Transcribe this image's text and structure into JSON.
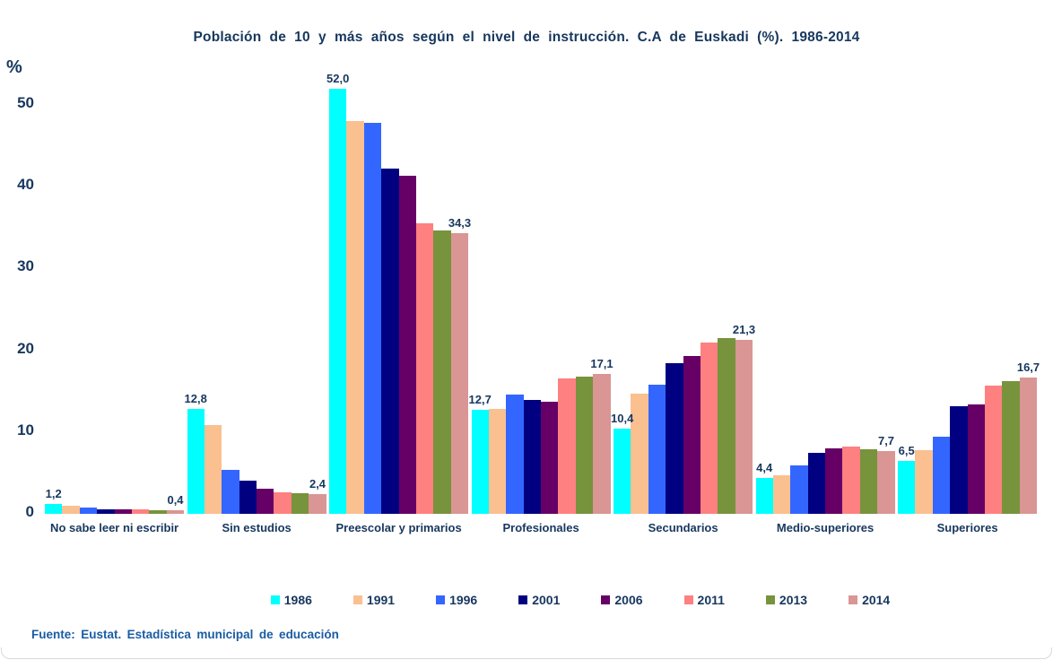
{
  "y_axis": {
    "unit": "%",
    "ticks": [
      0,
      10,
      20,
      30,
      40,
      50
    ]
  },
  "number_format": {
    "decimal_separator": ","
  },
  "chart_data": {
    "type": "bar",
    "title": "Población de 10 y más años según el nivel de instrucción.  C.A de Euskadi (%). 1986-2014",
    "categories": [
      "No sabe leer ni escribir",
      "Sin estudios",
      "Preescolar y primarios",
      "Profesionales",
      "Secundarios",
      "Medio-superiores",
      "Superiores"
    ],
    "series": [
      {
        "name": "1986",
        "color": "#00FFFF",
        "values": [
          1.2,
          12.8,
          52.0,
          12.7,
          10.4,
          4.4,
          6.5
        ]
      },
      {
        "name": "1991",
        "color": "#FAC090",
        "values": [
          1.0,
          10.9,
          48.0,
          12.8,
          14.7,
          4.7,
          7.8
        ]
      },
      {
        "name": "1996",
        "color": "#3366FF",
        "values": [
          0.8,
          5.4,
          47.8,
          14.6,
          15.8,
          5.9,
          9.4
        ]
      },
      {
        "name": "2001",
        "color": "#000080",
        "values": [
          0.6,
          4.1,
          42.2,
          13.9,
          18.4,
          7.4,
          13.2
        ]
      },
      {
        "name": "2006",
        "color": "#660066",
        "values": [
          0.5,
          3.1,
          41.3,
          13.7,
          19.3,
          8.0,
          13.4
        ]
      },
      {
        "name": "2011",
        "color": "#FF8080",
        "values": [
          0.5,
          2.6,
          35.5,
          16.5,
          20.9,
          8.2,
          15.7
        ]
      },
      {
        "name": "2013",
        "color": "#77933C",
        "values": [
          0.4,
          2.5,
          34.6,
          16.8,
          21.5,
          7.9,
          16.2
        ]
      },
      {
        "name": "2014",
        "color": "#D99694",
        "values": [
          0.4,
          2.4,
          34.3,
          17.1,
          21.3,
          7.7,
          16.7
        ]
      }
    ],
    "data_labels": {
      "series_shown": [
        "1986",
        "2014"
      ]
    },
    "ylim": [
      0,
      52
    ],
    "grid": false,
    "legend_position": "bottom",
    "xlabel": "",
    "ylabel": "%"
  },
  "footer": {
    "source": "Fuente: Eustat. Estadística municipal de educación"
  }
}
